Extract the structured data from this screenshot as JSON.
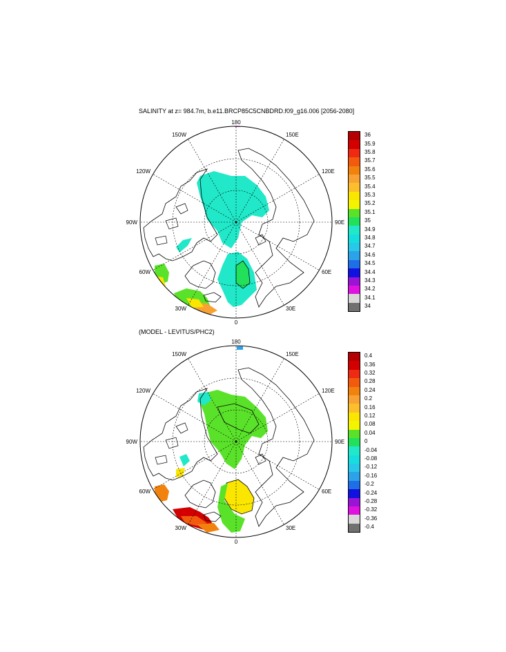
{
  "panel_top": {
    "title": "SALINITY at z= 984.7m, b.e11.BRCP85C5CNBDRD.f09_g16.006 [2056-2080]",
    "lon_labels": [
      "180",
      "150E",
      "120E",
      "90E",
      "60E",
      "30E",
      "0",
      "30W",
      "60W",
      "90W",
      "120W",
      "150W"
    ],
    "colorbar": {
      "labels": [
        "36",
        "35.9",
        "35.8",
        "35.7",
        "35.6",
        "35.5",
        "35.4",
        "35.3",
        "35.2",
        "35.1",
        "35",
        "34.9",
        "34.8",
        "34.7",
        "34.6",
        "34.5",
        "34.4",
        "34.3",
        "34.2",
        "34.1",
        "34"
      ],
      "colors": [
        "#b40000",
        "#d20000",
        "#ee2a12",
        "#f25a0e",
        "#f2820e",
        "#f8a234",
        "#fbbe2c",
        "#fae600",
        "#f4f400",
        "#5ae22a",
        "#22e05a",
        "#20e8c8",
        "#16dede",
        "#28c8e8",
        "#2ca2e8",
        "#1e6ee6",
        "#1212e0",
        "#9a14d6",
        "#e012e0",
        "#d8d8d8",
        "#707070"
      ]
    }
  },
  "panel_bottom": {
    "title": "(MODEL - LEVITUS/PHC2)",
    "lon_labels": [
      "180",
      "150E",
      "120E",
      "90E",
      "60E",
      "30E",
      "0",
      "30W",
      "60W",
      "90W",
      "120W",
      "150W"
    ],
    "colorbar": {
      "labels": [
        "0.4",
        "0.36",
        "0.32",
        "0.28",
        "0.24",
        "0.2",
        "0.16",
        "0.12",
        "0.08",
        "0.04",
        "0",
        "-0.04",
        "-0.08",
        "-0.12",
        "-0.16",
        "-0.2",
        "-0.24",
        "-0.28",
        "-0.32",
        "-0.36",
        "-0.4"
      ],
      "colors": [
        "#b40000",
        "#d20000",
        "#ee2a12",
        "#f25a0e",
        "#f2820e",
        "#f8a234",
        "#fbbe2c",
        "#fae600",
        "#f4f400",
        "#5ae22a",
        "#22e05a",
        "#20e8c8",
        "#16dede",
        "#28c8e8",
        "#2ca2e8",
        "#1e6ee6",
        "#1212e0",
        "#9a14d6",
        "#e012e0",
        "#d8d8d8",
        "#707070"
      ]
    }
  }
}
